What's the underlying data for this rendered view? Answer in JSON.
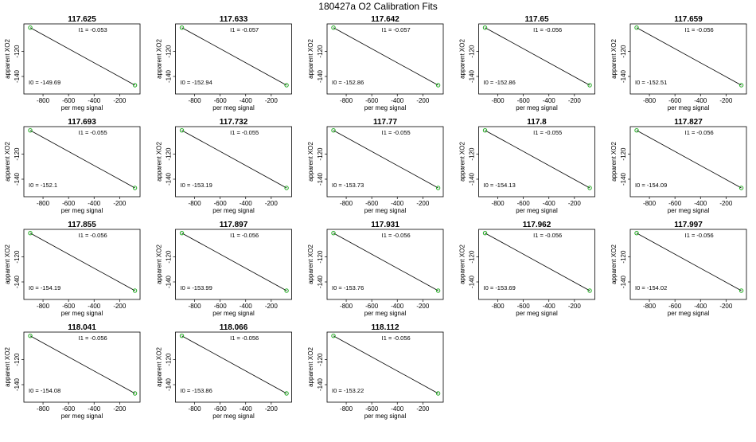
{
  "figure_title": "180427a   O2 Calibration Fits",
  "chart_data": {
    "type": "scatter",
    "title": "180427a   O2 Calibration Fits",
    "xlabel": "per meg signal",
    "ylabel": "apparent XO2",
    "xlim": [
      -950,
      -40
    ],
    "ylim": [
      -154,
      -98
    ],
    "x_ticks": [
      -800,
      -600,
      -400,
      -200
    ],
    "y_ticks": [
      -120,
      -140
    ],
    "i1_prefix": "I1 =",
    "i0_prefix": "I0 =",
    "colors": {
      "line": "#000000",
      "points": "#22aa22",
      "frame": "#000000"
    },
    "panels": [
      {
        "title": "117.625",
        "i1": "-0.053",
        "i0": "-149.69",
        "line": {
          "x": [
            -900,
            -80
          ],
          "y": [
            -101,
            -147
          ]
        }
      },
      {
        "title": "117.633",
        "i1": "-0.057",
        "i0": "-152.94",
        "line": {
          "x": [
            -900,
            -80
          ],
          "y": [
            -101,
            -147
          ]
        }
      },
      {
        "title": "117.642",
        "i1": "-0.057",
        "i0": "-152.86",
        "line": {
          "x": [
            -900,
            -80
          ],
          "y": [
            -101,
            -147
          ]
        }
      },
      {
        "title": "117.65",
        "i1": "-0.056",
        "i0": "-152.86",
        "line": {
          "x": [
            -900,
            -80
          ],
          "y": [
            -101,
            -147
          ]
        }
      },
      {
        "title": "117.659",
        "i1": "-0.056",
        "i0": "-152.51",
        "line": {
          "x": [
            -900,
            -80
          ],
          "y": [
            -101,
            -147
          ]
        }
      },
      {
        "title": "117.693",
        "i1": "-0.055",
        "i0": "-152.1",
        "line": {
          "x": [
            -900,
            -80
          ],
          "y": [
            -101,
            -147
          ]
        }
      },
      {
        "title": "117.732",
        "i1": "-0.055",
        "i0": "-153.19",
        "line": {
          "x": [
            -900,
            -80
          ],
          "y": [
            -101,
            -147
          ]
        }
      },
      {
        "title": "117.77",
        "i1": "-0.055",
        "i0": "-153.73",
        "line": {
          "x": [
            -900,
            -80
          ],
          "y": [
            -101,
            -147
          ]
        }
      },
      {
        "title": "117.8",
        "i1": "-0.055",
        "i0": "-154.13",
        "line": {
          "x": [
            -900,
            -80
          ],
          "y": [
            -101,
            -147
          ]
        }
      },
      {
        "title": "117.827",
        "i1": "-0.056",
        "i0": "-154.09",
        "line": {
          "x": [
            -900,
            -80
          ],
          "y": [
            -101,
            -147
          ]
        }
      },
      {
        "title": "117.855",
        "i1": "-0.056",
        "i0": "-154.19",
        "line": {
          "x": [
            -900,
            -80
          ],
          "y": [
            -101,
            -147
          ]
        }
      },
      {
        "title": "117.897",
        "i1": "-0.056",
        "i0": "-153.99",
        "line": {
          "x": [
            -900,
            -80
          ],
          "y": [
            -101,
            -147
          ]
        }
      },
      {
        "title": "117.931",
        "i1": "-0.056",
        "i0": "-153.76",
        "line": {
          "x": [
            -900,
            -80
          ],
          "y": [
            -101,
            -147
          ]
        }
      },
      {
        "title": "117.962",
        "i1": "-0.056",
        "i0": "-153.69",
        "line": {
          "x": [
            -900,
            -80
          ],
          "y": [
            -101,
            -147
          ]
        }
      },
      {
        "title": "117.997",
        "i1": "-0.056",
        "i0": "-154.02",
        "line": {
          "x": [
            -900,
            -80
          ],
          "y": [
            -101,
            -147
          ]
        }
      },
      {
        "title": "118.041",
        "i1": "-0.056",
        "i0": "-154.08",
        "line": {
          "x": [
            -900,
            -80
          ],
          "y": [
            -101,
            -147
          ]
        }
      },
      {
        "title": "118.066",
        "i1": "-0.056",
        "i0": "-153.86",
        "line": {
          "x": [
            -900,
            -80
          ],
          "y": [
            -101,
            -147
          ]
        }
      },
      {
        "title": "118.112",
        "i1": "-0.056",
        "i0": "-153.22",
        "line": {
          "x": [
            -900,
            -80
          ],
          "y": [
            -101,
            -147
          ]
        }
      }
    ]
  }
}
